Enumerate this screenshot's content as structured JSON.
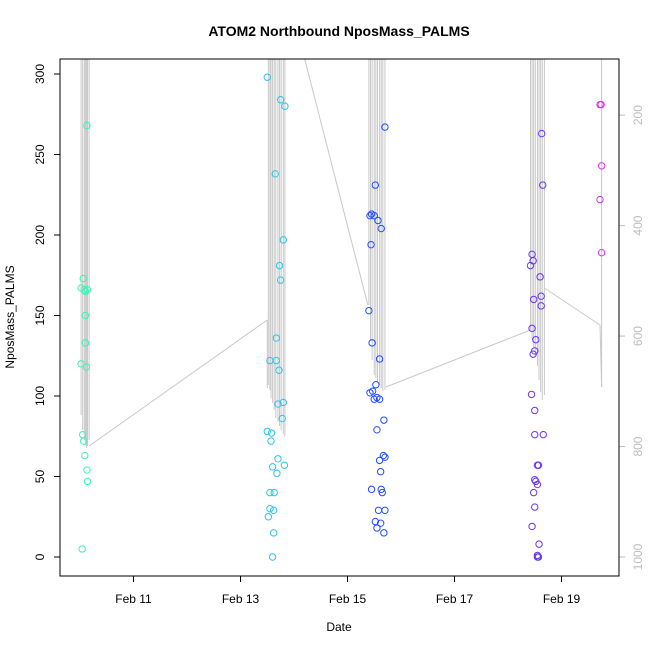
{
  "chart_data": {
    "type": "scatter",
    "title": "ATOM2 Northbound NposMass_PALMS",
    "xlabel": "Date",
    "ylabel": "NposMass_PALMS",
    "x_unit": "days since Feb 10 00:00",
    "xlim": [
      0.0,
      9.8
    ],
    "ylim": [
      0,
      300
    ],
    "x_ticks": [
      {
        "label": "Feb 11",
        "value": 1
      },
      {
        "label": "Feb 13",
        "value": 3
      },
      {
        "label": "Feb 15",
        "value": 5
      },
      {
        "label": "Feb 17",
        "value": 7
      },
      {
        "label": "Feb 19",
        "value": 9
      }
    ],
    "y_ticks": [
      0,
      50,
      100,
      150,
      200,
      250,
      300
    ],
    "secondary_axis": {
      "side": "right",
      "color": "#bdbdbd",
      "reversed": true,
      "range": [
        1000,
        150
      ],
      "ticks": [
        200,
        400,
        600,
        800,
        1000
      ],
      "description": "pressure trace (gray line)"
    },
    "point_colors": {
      "flight1": "#3df2b0",
      "flight2": "#29c6ea",
      "flight3": "#1f4cff",
      "flight4": "#6a35f2",
      "flight5": "#d535e6"
    },
    "line_color": "#c8c8c8",
    "series": [
      {
        "name": "flight1",
        "points": [
          [
            0.02,
            167
          ],
          [
            0.06,
            173
          ],
          [
            0.08,
            166
          ],
          [
            0.1,
            165
          ],
          [
            0.14,
            166
          ],
          [
            0.02,
            120
          ],
          [
            0.05,
            76
          ],
          [
            0.07,
            72
          ],
          [
            0.09,
            63
          ],
          [
            0.1,
            150
          ],
          [
            0.1,
            133
          ],
          [
            0.12,
            118
          ],
          [
            0.13,
            268
          ],
          [
            0.13,
            54
          ],
          [
            0.14,
            47
          ],
          [
            0.04,
            5
          ]
        ]
      },
      {
        "name": "flight2",
        "points": [
          [
            3.5,
            298
          ],
          [
            3.5,
            78
          ],
          [
            3.55,
            122
          ],
          [
            3.57,
            72
          ],
          [
            3.58,
            77
          ],
          [
            3.6,
            56
          ],
          [
            3.62,
            29
          ],
          [
            3.55,
            40
          ],
          [
            3.52,
            25
          ],
          [
            3.55,
            30
          ],
          [
            3.63,
            40
          ],
          [
            3.62,
            15
          ],
          [
            3.6,
            0
          ],
          [
            3.65,
            238
          ],
          [
            3.67,
            122
          ],
          [
            3.68,
            52
          ],
          [
            3.7,
            61
          ],
          [
            3.7,
            95
          ],
          [
            3.72,
            116
          ],
          [
            3.73,
            181
          ],
          [
            3.75,
            172
          ],
          [
            3.75,
            284
          ],
          [
            3.78,
            86
          ],
          [
            3.8,
            96
          ],
          [
            3.8,
            197
          ],
          [
            3.82,
            57
          ],
          [
            3.83,
            280
          ],
          [
            3.67,
            136
          ]
        ]
      },
      {
        "name": "flight3",
        "points": [
          [
            5.4,
            153
          ],
          [
            5.42,
            212
          ],
          [
            5.44,
            194
          ],
          [
            5.45,
            213
          ],
          [
            5.46,
            133
          ],
          [
            5.42,
            102
          ],
          [
            5.47,
            103
          ],
          [
            5.5,
            212
          ],
          [
            5.52,
            231
          ],
          [
            5.5,
            98
          ],
          [
            5.53,
            107
          ],
          [
            5.55,
            99
          ],
          [
            5.57,
            209
          ],
          [
            5.6,
            123
          ],
          [
            5.45,
            42
          ],
          [
            5.52,
            22
          ],
          [
            5.55,
            18
          ],
          [
            5.58,
            29
          ],
          [
            5.55,
            79
          ],
          [
            5.6,
            98
          ],
          [
            5.6,
            60
          ],
          [
            5.62,
            53
          ],
          [
            5.63,
            42
          ],
          [
            5.65,
            40
          ],
          [
            5.63,
            204
          ],
          [
            5.67,
            63
          ],
          [
            5.7,
            62
          ],
          [
            5.7,
            29
          ],
          [
            5.68,
            15
          ],
          [
            5.68,
            85
          ],
          [
            5.7,
            267
          ],
          [
            5.62,
            21
          ]
        ]
      },
      {
        "name": "flight4",
        "points": [
          [
            8.42,
            181
          ],
          [
            8.45,
            188
          ],
          [
            8.47,
            184
          ],
          [
            8.45,
            142
          ],
          [
            8.44,
            101
          ],
          [
            8.47,
            126
          ],
          [
            8.5,
            128
          ],
          [
            8.48,
            160
          ],
          [
            8.5,
            91
          ],
          [
            8.5,
            76
          ],
          [
            8.5,
            48
          ],
          [
            8.52,
            47
          ],
          [
            8.55,
            57
          ],
          [
            8.55,
            45
          ],
          [
            8.57,
            57
          ],
          [
            8.6,
            174
          ],
          [
            8.62,
            162
          ],
          [
            8.62,
            156
          ],
          [
            8.63,
            263
          ],
          [
            8.65,
            231
          ],
          [
            8.66,
            76
          ],
          [
            8.45,
            19
          ],
          [
            8.5,
            31
          ],
          [
            8.55,
            0
          ],
          [
            8.55,
            1
          ],
          [
            8.58,
            8
          ],
          [
            8.57,
            0
          ],
          [
            8.48,
            40
          ],
          [
            8.52,
            135
          ]
        ]
      },
      {
        "name": "flight5",
        "points": [
          [
            9.72,
            281
          ],
          [
            9.74,
            281
          ],
          [
            9.75,
            243
          ],
          [
            9.72,
            222
          ],
          [
            9.75,
            189
          ]
        ]
      }
    ]
  }
}
